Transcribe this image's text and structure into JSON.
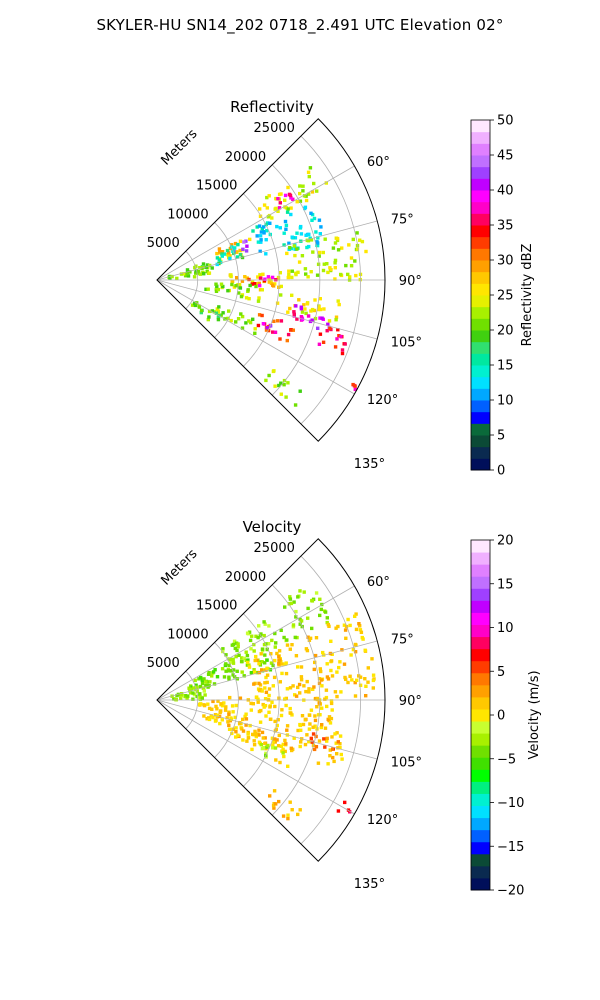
{
  "figure": {
    "title": "SKYLER-HU  SN14_202  0718_2.491 UTC Elevation 02°"
  },
  "colors": {
    "axis": "#000000",
    "grid": "#b0b0b0",
    "reflectivity_cmap": [
      "#000f5a",
      "#0a2a50",
      "#0b4a36",
      "#0a6a3a",
      "#0000ff",
      "#0060ff",
      "#00a8ff",
      "#00e0ff",
      "#00f0d0",
      "#00e8a0",
      "#30e070",
      "#40d010",
      "#70e000",
      "#a8f000",
      "#e6f000",
      "#ffe600",
      "#ffc800",
      "#ffa000",
      "#ff7800",
      "#ff3c00",
      "#ff0000",
      "#ff0060",
      "#ff00c8",
      "#ff00ff",
      "#c000ff",
      "#9f40ff",
      "#c070ff",
      "#e080ff",
      "#f0b0ff",
      "#ffe8ff"
    ],
    "velocity_cmap": [
      "#000f5a",
      "#0a2a50",
      "#0b4a36",
      "#0000ff",
      "#0060ff",
      "#00a8ff",
      "#00e0ff",
      "#00f0d0",
      "#00f080",
      "#00ff00",
      "#40e000",
      "#70e000",
      "#a8f000",
      "#c8ff30",
      "#ffe600",
      "#ffc800",
      "#ffa000",
      "#ff7800",
      "#ff3c00",
      "#ff0000",
      "#ff0060",
      "#ff00c8",
      "#ff00ff",
      "#c000ff",
      "#9f40ff",
      "#c070ff",
      "#e080ff",
      "#f0b0ff",
      "#ffe8ff"
    ]
  },
  "chart_data": [
    {
      "type": "heatmap",
      "title": "Reflectivity",
      "radial_label": "Meters",
      "r_ticks": [
        "5000",
        "10000",
        "15000",
        "20000",
        "25000"
      ],
      "r_tick_values": [
        5000,
        10000,
        15000,
        20000,
        25000
      ],
      "r_max": 28000,
      "theta_range_deg": [
        45,
        135
      ],
      "theta_ticks": [
        "60°",
        "75°",
        "90°",
        "105°",
        "120°",
        "135°"
      ],
      "theta_tick_values": [
        60,
        75,
        90,
        105,
        120,
        135
      ],
      "grid": true,
      "colorbar": {
        "label": "Reflectivity dBZ",
        "range": [
          0,
          50
        ],
        "ticks": [
          "0",
          "5",
          "10",
          "15",
          "20",
          "25",
          "30",
          "35",
          "40",
          "45",
          "50"
        ]
      },
      "echo_regions": [
        {
          "az": [
            53,
            62
          ],
          "r": [
            14000,
            24000
          ],
          "dbz": 24
        },
        {
          "az": [
            56,
            61
          ],
          "r": [
            17000,
            20500
          ],
          "dbz": 37
        },
        {
          "az": [
            62,
            74
          ],
          "r": [
            8000,
            12500
          ],
          "dbz": 27
        },
        {
          "az": [
            64,
            72
          ],
          "r": [
            10000,
            12000
          ],
          "dbz": 42
        },
        {
          "az": [
            62,
            78
          ],
          "r": [
            13000,
            22000
          ],
          "dbz": 13
        },
        {
          "az": [
            66,
            76
          ],
          "r": [
            7000,
            11000
          ],
          "dbz": 16
        },
        {
          "az": [
            75,
            90
          ],
          "r": [
            16000,
            26000
          ],
          "dbz": 23
        },
        {
          "az": [
            86,
            96
          ],
          "r": [
            9000,
            16000
          ],
          "dbz": 27
        },
        {
          "az": [
            88,
            94
          ],
          "r": [
            11000,
            15000
          ],
          "dbz": 36
        },
        {
          "az": [
            93,
            102
          ],
          "r": [
            6000,
            13000
          ],
          "dbz": 22
        },
        {
          "az": [
            96,
            104
          ],
          "r": [
            15000,
            23000
          ],
          "dbz": 25
        },
        {
          "az": [
            100,
            106
          ],
          "r": [
            16000,
            21500
          ],
          "dbz": 39
        },
        {
          "az": [
            103,
            107
          ],
          "r": [
            19500,
            22000
          ],
          "dbz": 43
        },
        {
          "az": [
            105,
            112
          ],
          "r": [
            20000,
            25000
          ],
          "dbz": 35
        },
        {
          "az": [
            108,
            116
          ],
          "r": [
            13000,
            18000
          ],
          "dbz": 33
        },
        {
          "az": [
            111,
            115
          ],
          "r": [
            14000,
            16500
          ],
          "dbz": 39
        },
        {
          "az": [
            112,
            120
          ],
          "r": [
            8000,
            14000
          ],
          "dbz": 22
        },
        {
          "az": [
            118,
            122
          ],
          "r": [
            26000,
            28000
          ],
          "dbz": 35
        },
        {
          "az": [
            127,
            133
          ],
          "r": [
            18000,
            23000
          ],
          "dbz": 22
        },
        {
          "az": [
            118,
            128
          ],
          "r": [
            5000,
            9000
          ],
          "dbz": 20
        },
        {
          "az": [
            70,
            85
          ],
          "r": [
            1500,
            7000
          ],
          "dbz": 21
        }
      ]
    },
    {
      "type": "heatmap",
      "title": "Velocity",
      "radial_label": "Meters",
      "r_ticks": [
        "5000",
        "10000",
        "15000",
        "20000",
        "25000"
      ],
      "r_tick_values": [
        5000,
        10000,
        15000,
        20000,
        25000
      ],
      "r_max": 28000,
      "theta_range_deg": [
        45,
        135
      ],
      "theta_ticks": [
        "60°",
        "75°",
        "90°",
        "105°",
        "120°",
        "135°"
      ],
      "theta_tick_values": [
        60,
        75,
        90,
        105,
        120,
        135
      ],
      "grid": true,
      "colorbar": {
        "label": "Velocity (m/s)",
        "range": [
          -20,
          20
        ],
        "ticks": [
          "−20",
          "−15",
          "−10",
          "−5",
          "0",
          "5",
          "10",
          "15",
          "20"
        ]
      },
      "echo_regions": [
        {
          "az": [
            52,
            66
          ],
          "r": [
            10000,
            24000
          ],
          "vel": -3
        },
        {
          "az": [
            62,
            76
          ],
          "r": [
            4000,
            15000
          ],
          "vel": -4
        },
        {
          "az": [
            66,
            90
          ],
          "r": [
            12000,
            27000
          ],
          "vel": 1
        },
        {
          "az": [
            70,
            90
          ],
          "r": [
            1500,
            6000
          ],
          "vel": -3
        },
        {
          "az": [
            88,
            100
          ],
          "r": [
            5000,
            22000
          ],
          "vel": 1
        },
        {
          "az": [
            100,
            112
          ],
          "r": [
            6000,
            24000
          ],
          "vel": 1
        },
        {
          "az": [
            102,
            108
          ],
          "r": [
            19000,
            23000
          ],
          "vel": 5
        },
        {
          "az": [
            108,
            118
          ],
          "r": [
            10000,
            18000
          ],
          "vel": 1
        },
        {
          "az": [
            112,
            118
          ],
          "r": [
            13000,
            17000
          ],
          "vel": -3
        },
        {
          "az": [
            118,
            122
          ],
          "r": [
            26000,
            28000
          ],
          "vel": 7
        },
        {
          "az": [
            127,
            133
          ],
          "r": [
            18000,
            23000
          ],
          "vel": 2
        }
      ]
    }
  ]
}
